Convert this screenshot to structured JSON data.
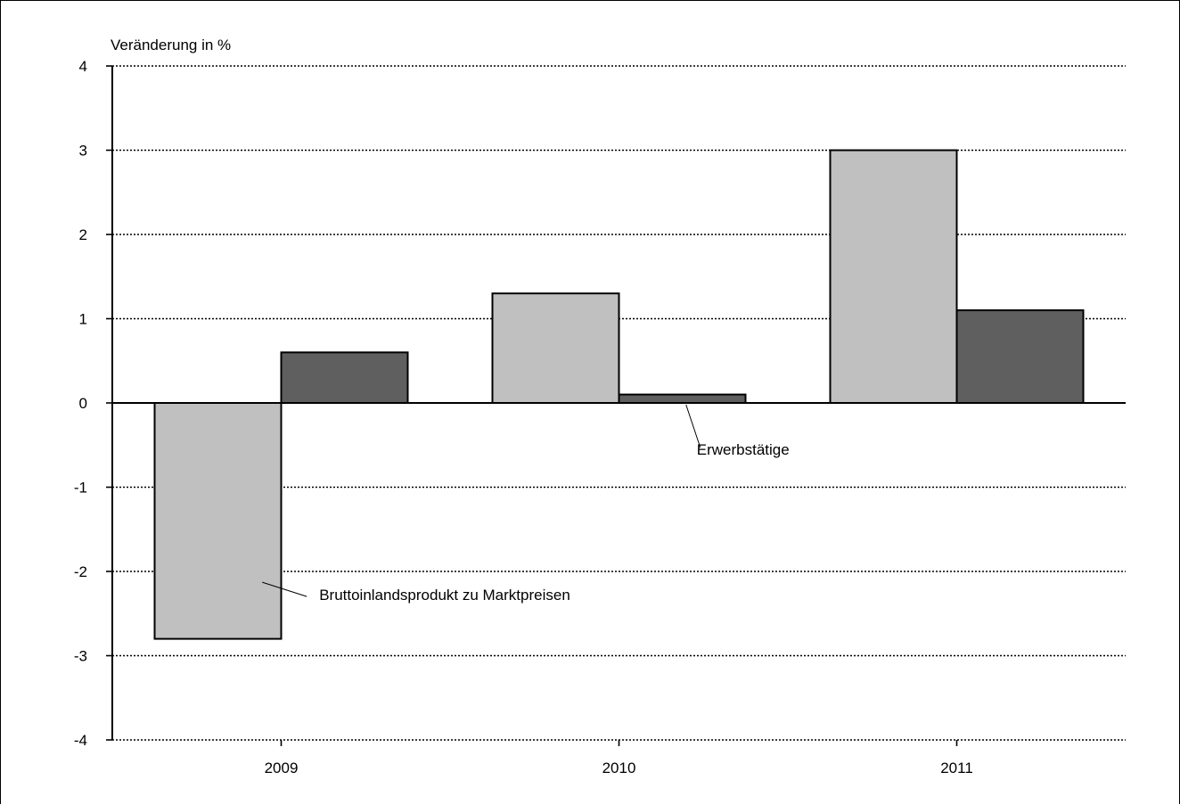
{
  "chart_data": {
    "type": "bar",
    "ylabel": "Veränderung in %",
    "categories": [
      "2009",
      "2010",
      "2011"
    ],
    "ylim": [
      -4,
      4
    ],
    "yticks": [
      "4",
      "3",
      "2",
      "1",
      "0",
      "-1",
      "-2",
      "-3",
      "-4"
    ],
    "grid": true,
    "series": [
      {
        "name": "Bruttoinlandsprodukt zu Marktpreisen",
        "values": [
          -2.8,
          1.3,
          3.0
        ],
        "color": "#c0c0c0"
      },
      {
        "name": "Erwerbstätige",
        "values": [
          0.6,
          0.1,
          1.1
        ],
        "color": "#5f5f5f"
      }
    ],
    "annotations": [
      {
        "text": "Bruttoinlandsprodukt zu Marktpreisen",
        "series": 0,
        "category": 0
      },
      {
        "text": "Erwerbstätige",
        "series": 1,
        "category": 1
      }
    ]
  }
}
